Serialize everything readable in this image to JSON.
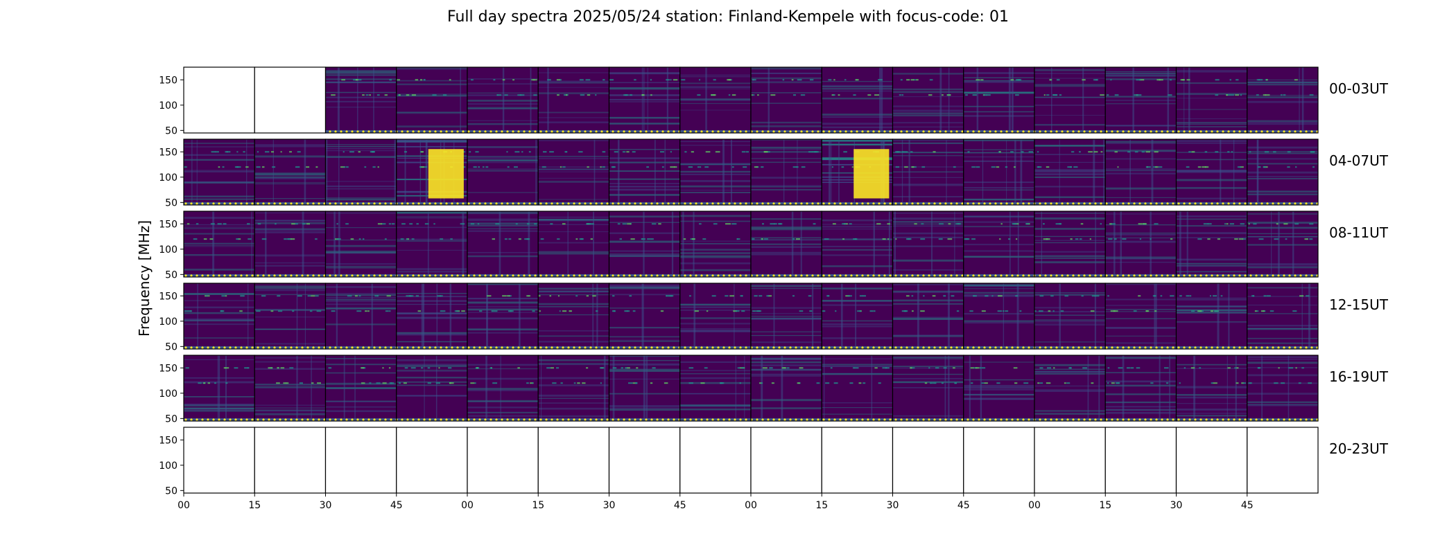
{
  "title": "Full day spectra 2025/05/24 station: Finland-Kempele with focus-code: 01",
  "ylabel": "Frequency [MHz]",
  "colors": {
    "low": "#440154",
    "mid": "#3b528b",
    "teal": "#21918c",
    "green": "#5ec962",
    "high": "#fde725",
    "frame": "#000000"
  },
  "chart_data": {
    "type": "heatmap",
    "title": "Full day spectra 2025/05/24 station: Finland-Kempele with focus-code: 01",
    "xlabel": "",
    "ylabel": "Frequency [MHz]",
    "ylim": [
      45,
      175
    ],
    "y_ticks": [
      "150",
      "100",
      "50"
    ],
    "y_tick_values": [
      150,
      100,
      50
    ],
    "x_ticks": [
      "00",
      "15",
      "30",
      "45",
      "00",
      "15",
      "30",
      "45",
      "00",
      "15",
      "30",
      "45",
      "00",
      "15",
      "30",
      "45"
    ],
    "rows": [
      {
        "label": "00-03UT",
        "panel_status": [
          "empty",
          "empty",
          "data",
          "data",
          "data",
          "data",
          "data",
          "data",
          "data",
          "data",
          "data",
          "data",
          "data",
          "data",
          "data",
          "data"
        ]
      },
      {
        "label": "04-07UT",
        "panel_status": [
          "data",
          "data",
          "data",
          "data",
          "data",
          "data",
          "data",
          "data",
          "data",
          "data",
          "data",
          "data",
          "data",
          "data",
          "data",
          "data"
        ]
      },
      {
        "label": "08-11UT",
        "panel_status": [
          "data",
          "data",
          "data",
          "data",
          "data",
          "data",
          "data",
          "data",
          "data",
          "data",
          "data",
          "data",
          "data",
          "data",
          "data",
          "data"
        ]
      },
      {
        "label": "12-15UT",
        "panel_status": [
          "data",
          "data",
          "data",
          "data",
          "data",
          "data",
          "data",
          "data",
          "data",
          "data",
          "data",
          "data",
          "data",
          "data",
          "data",
          "data"
        ]
      },
      {
        "label": "16-19UT",
        "panel_status": [
          "data",
          "data",
          "data",
          "data",
          "data",
          "data",
          "data",
          "data",
          "data",
          "data",
          "data",
          "data",
          "data",
          "data",
          "data",
          "data"
        ]
      },
      {
        "label": "20-23UT",
        "panel_status": [
          "empty",
          "empty",
          "empty",
          "empty",
          "empty",
          "empty",
          "empty",
          "empty",
          "empty",
          "empty",
          "empty",
          "empty",
          "empty",
          "empty",
          "empty",
          "empty"
        ]
      }
    ],
    "intensity": [
      [
        0,
        0,
        0.35,
        0.15,
        0.25,
        0.12,
        0.45,
        0.15,
        0.18,
        0.25,
        0.22,
        0.35,
        0.2,
        0.3,
        0.22,
        0.25
      ],
      [
        0.35,
        0.25,
        0.35,
        0.85,
        0.2,
        0.15,
        0.4,
        0.3,
        0.3,
        0.9,
        0.4,
        0.45,
        0.35,
        0.3,
        0.3,
        0.3
      ],
      [
        0.25,
        0.22,
        0.25,
        0.25,
        0.25,
        0.22,
        0.28,
        0.25,
        0.3,
        0.28,
        0.32,
        0.22,
        0.3,
        0.32,
        0.35,
        0.32
      ],
      [
        0.3,
        0.22,
        0.25,
        0.45,
        0.4,
        0.25,
        0.28,
        0.25,
        0.3,
        0.25,
        0.28,
        0.25,
        0.25,
        0.25,
        0.28,
        0.25
      ],
      [
        0.35,
        0.25,
        0.3,
        0.3,
        0.3,
        0.28,
        0.35,
        0.3,
        0.3,
        0.3,
        0.3,
        0.28,
        0.3,
        0.35,
        0.32,
        0.28
      ],
      [
        0,
        0,
        0,
        0,
        0,
        0,
        0,
        0,
        0,
        0,
        0,
        0,
        0,
        0,
        0,
        0
      ]
    ]
  }
}
